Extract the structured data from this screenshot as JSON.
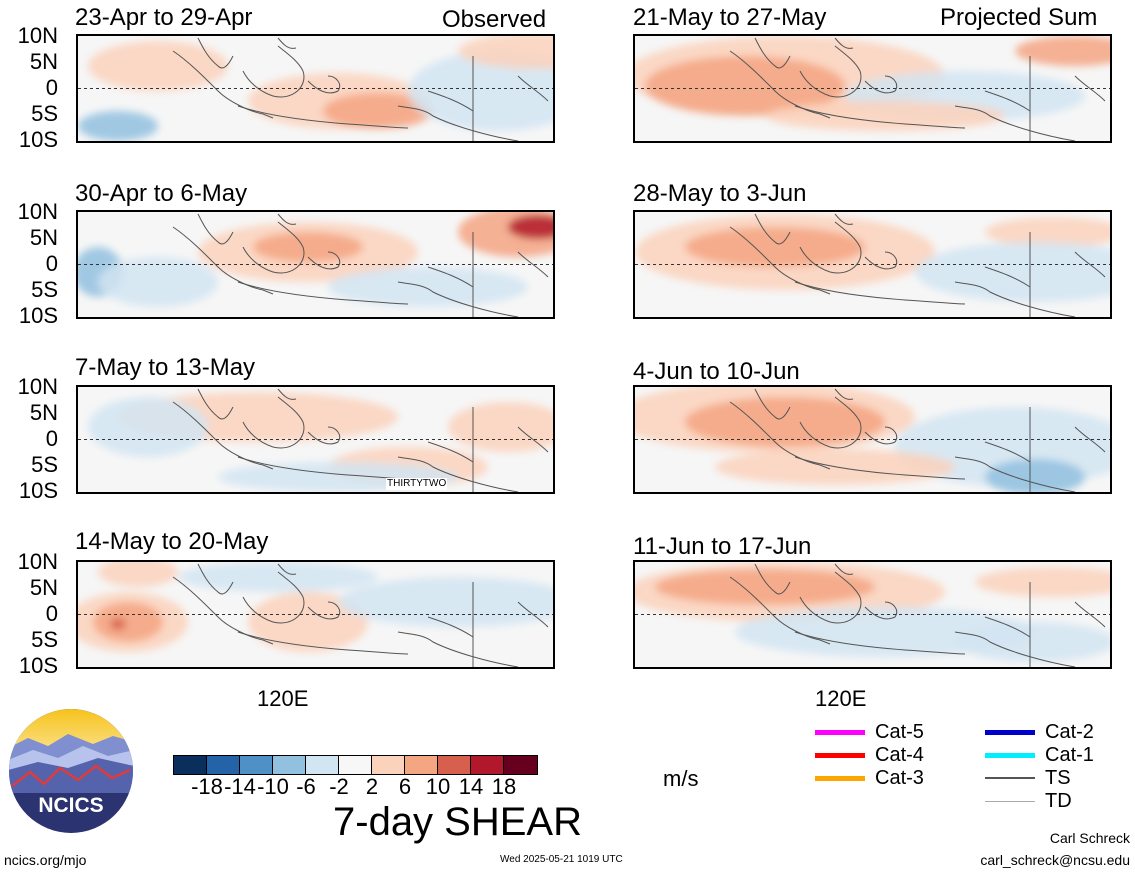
{
  "labels": {
    "observed": "Observed",
    "projected": "Projected Sum",
    "lon_tick": "120E",
    "lat_ticks": [
      "10N",
      "5N",
      "0",
      "5S",
      "10S"
    ]
  },
  "panels": [
    {
      "title": "23-Apr to 29-Apr"
    },
    {
      "title": "30-Apr to 6-May"
    },
    {
      "title": "7-May to 13-May",
      "annotation": "THIRTYTWO"
    },
    {
      "title": "14-May to 20-May"
    },
    {
      "title": "21-May to 27-May"
    },
    {
      "title": "28-May to 3-Jun"
    },
    {
      "title": "4-Jun to 10-Jun"
    },
    {
      "title": "11-Jun to 17-Jun"
    }
  ],
  "colorbar": {
    "title": "7-day SHEAR",
    "units": "m/s",
    "ticks": [
      "-18",
      "-14",
      "-10",
      "-6",
      "-2",
      "2",
      "6",
      "10",
      "14",
      "18"
    ],
    "colors": [
      "#0b2f5c",
      "#2563a8",
      "#4f90c6",
      "#92c1df",
      "#d2e5f2",
      "#f7f7f7",
      "#fbd2bc",
      "#f4a582",
      "#d6604d",
      "#b2182b",
      "#67001f"
    ]
  },
  "legend": {
    "items": [
      {
        "label": "Cat-5",
        "color": "#ff00ff"
      },
      {
        "label": "Cat-4",
        "color": "#ff0000"
      },
      {
        "label": "Cat-3",
        "color": "#ffa500"
      },
      {
        "label": "Cat-2",
        "color": "#0000cc"
      },
      {
        "label": "Cat-1",
        "color": "#00eeff"
      },
      {
        "label": "TS",
        "color": "#555555"
      },
      {
        "label": "TD",
        "color": "#aaaaaa"
      }
    ]
  },
  "logo": {
    "text": "NCICS"
  },
  "footer": {
    "url": "ncics.org/mjo",
    "timestamp": "Wed 2025-05-21 1019 UTC",
    "author": "Carl Schreck",
    "email": "carl_schreck@ncsu.edu"
  }
}
